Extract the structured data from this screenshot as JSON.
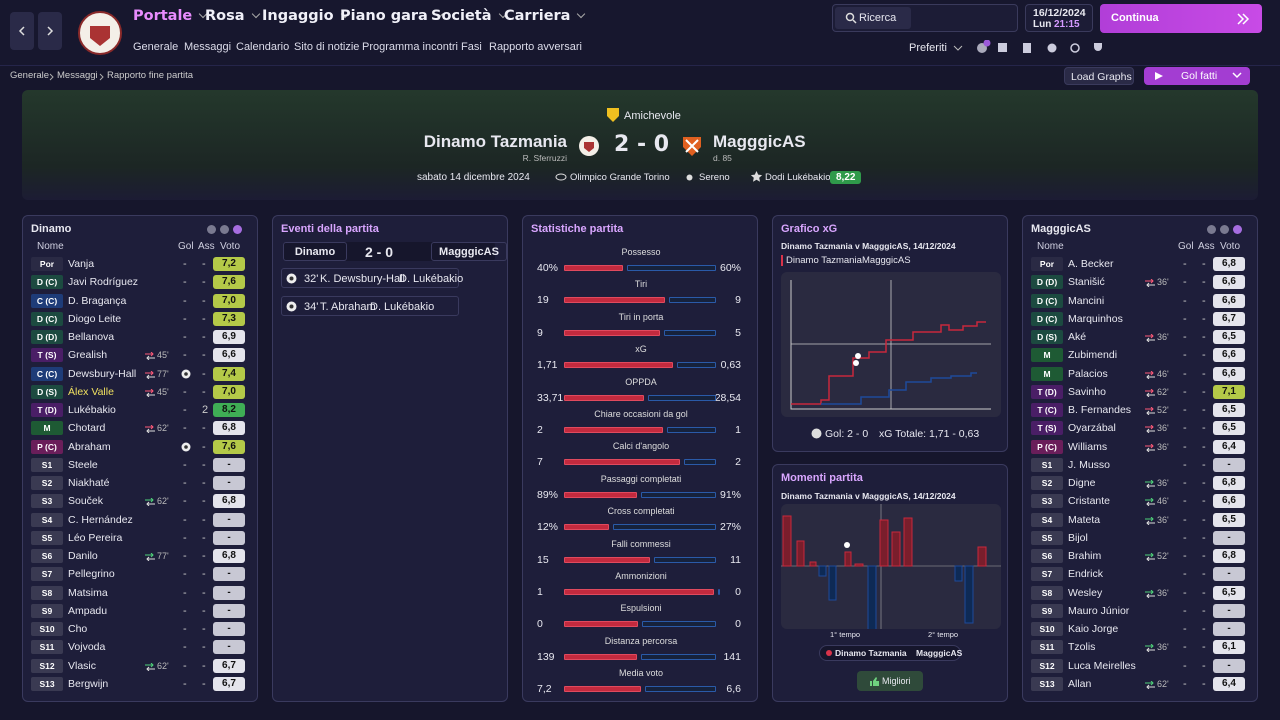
{
  "nav": {
    "menu": [
      "Portale",
      "Rosa",
      "Ingaggio",
      "Piano gara",
      "Società",
      "Carriera"
    ],
    "submenu": [
      "Generale",
      "Messaggi",
      "Calendario",
      "Sito di notizie",
      "Programma incontri",
      "Fasi",
      "Rapporto avversari"
    ],
    "search": "Ricerca",
    "date": "16/12/2024",
    "day": "Lun",
    "time": "21:15",
    "continue": "Continua",
    "favorites": "Preferiti"
  },
  "breadcrumb": [
    "Generale",
    "Messaggi",
    "Rapporto fine partita"
  ],
  "buttons": {
    "load_graphs": "Load Graphs",
    "goals": "Gol fatti"
  },
  "match": {
    "competition": "Amichevole",
    "home": "Dinamo Tazmania",
    "home_manager": "R. Sferruzzi",
    "score": "2 - 0",
    "away": "MagggicAS",
    "away_manager": "d. 85",
    "date": "sabato 14 dicembre 2024",
    "stadium": "Olimpico Grande Torino",
    "weather": "Sereno",
    "player_of_match": "Dodi Lukébakio",
    "player_of_match_rating": "8,22"
  },
  "home_lineup": {
    "title": "Dinamo",
    "headers": [
      "Nome",
      "Gol",
      "Ass",
      "Voto"
    ],
    "players": [
      {
        "pos": "Por",
        "name": "Vanja",
        "gol": "-",
        "ass": "-",
        "rating": "7,2"
      },
      {
        "pos": "D (C)",
        "name": "Javi Rodríguez",
        "gol": "-",
        "ass": "-",
        "rating": "7,6"
      },
      {
        "pos": "C (C)",
        "name": "D. Bragança",
        "gol": "-",
        "ass": "-",
        "rating": "7,0"
      },
      {
        "pos": "D (C)",
        "name": "Diogo Leite",
        "gol": "-",
        "ass": "-",
        "rating": "7,3"
      },
      {
        "pos": "D (D)",
        "name": "Bellanova",
        "gol": "-",
        "ass": "-",
        "rating": "6,9"
      },
      {
        "pos": "T (S)",
        "name": "Grealish",
        "sub": "45'",
        "sub_type": "off",
        "gol": "-",
        "ass": "-",
        "rating": "6,6"
      },
      {
        "pos": "C (C)",
        "name": "Dewsbury-Hall",
        "sub": "77'",
        "sub_type": "off",
        "goal_icon": true,
        "ass": "-",
        "rating": "7,4"
      },
      {
        "pos": "D (S)",
        "name": "Álex Valle",
        "highlight": true,
        "sub": "45'",
        "sub_type": "off",
        "gol": "-",
        "ass": "-",
        "rating": "7,0"
      },
      {
        "pos": "T (D)",
        "name": "Lukébakio",
        "gol": "-",
        "ass": "2",
        "rating": "8,2"
      },
      {
        "pos": "M",
        "name": "Chotard",
        "sub": "62'",
        "sub_type": "off",
        "gol": "-",
        "ass": "-",
        "rating": "6,8"
      },
      {
        "pos": "P (C)",
        "name": "Abraham",
        "goal_icon": true,
        "ass": "-",
        "rating": "7,6"
      },
      {
        "pos": "S1",
        "name": "Steele",
        "gol": "-",
        "ass": "-",
        "rating": "-"
      },
      {
        "pos": "S2",
        "name": "Niakhaté",
        "gol": "-",
        "ass": "-",
        "rating": "-"
      },
      {
        "pos": "S3",
        "name": "Souček",
        "sub": "62'",
        "sub_type": "on",
        "gol": "-",
        "ass": "-",
        "rating": "6,8"
      },
      {
        "pos": "S4",
        "name": "C. Hernández",
        "gol": "-",
        "ass": "-",
        "rating": "-"
      },
      {
        "pos": "S5",
        "name": "Léo Pereira",
        "gol": "-",
        "ass": "-",
        "rating": "-"
      },
      {
        "pos": "S6",
        "name": "Danilo",
        "sub": "77'",
        "sub_type": "on",
        "gol": "-",
        "ass": "-",
        "rating": "6,8"
      },
      {
        "pos": "S7",
        "name": "Pellegrino",
        "gol": "-",
        "ass": "-",
        "rating": "-"
      },
      {
        "pos": "S8",
        "name": "Matsima",
        "gol": "-",
        "ass": "-",
        "rating": "-"
      },
      {
        "pos": "S9",
        "name": "Ampadu",
        "gol": "-",
        "ass": "-",
        "rating": "-"
      },
      {
        "pos": "S10",
        "name": "Cho",
        "gol": "-",
        "ass": "-",
        "rating": "-"
      },
      {
        "pos": "S11",
        "name": "Vojvoda",
        "gol": "-",
        "ass": "-",
        "rating": "-"
      },
      {
        "pos": "S12",
        "name": "Vlasic",
        "sub": "62'",
        "sub_type": "on",
        "gol": "-",
        "ass": "-",
        "rating": "6,7"
      },
      {
        "pos": "S13",
        "name": "Bergwijn",
        "gol": "-",
        "ass": "-",
        "rating": "6,7"
      }
    ]
  },
  "events": {
    "title": "Eventi della partita",
    "home": "Dinamo",
    "score": "2 - 0",
    "away": "MagggicAS",
    "items": [
      {
        "minute": "32'",
        "scorer": "K. Dewsbury-Hall",
        "assist": "D. Lukébakio"
      },
      {
        "minute": "34'",
        "scorer": "T. Abraham",
        "assist": "D. Lukébakio"
      }
    ]
  },
  "stats": {
    "title": "Statistiche partita",
    "rows": [
      {
        "label": "Possesso",
        "home": "40%",
        "away": "60%"
      },
      {
        "label": "Tiri",
        "home": "19",
        "away": "9"
      },
      {
        "label": "Tiri in porta",
        "home": "9",
        "away": "5"
      },
      {
        "label": "xG",
        "home": "1,71",
        "away": "0,63"
      },
      {
        "label": "OPPDA",
        "home": "33,71",
        "away": "28,54"
      },
      {
        "label": "Chiare occasioni da gol",
        "home": "2",
        "away": "1"
      },
      {
        "label": "Calci d'angolo",
        "home": "7",
        "away": "2"
      },
      {
        "label": "Passaggi completati",
        "home": "89%",
        "away": "91%"
      },
      {
        "label": "Cross completati",
        "home": "12%",
        "away": "27%"
      },
      {
        "label": "Falli commessi",
        "home": "15",
        "away": "11"
      },
      {
        "label": "Ammonizioni",
        "home": "1",
        "away": "0"
      },
      {
        "label": "Espulsioni",
        "home": "0",
        "away": "0"
      },
      {
        "label": "Distanza percorsa",
        "home": "139",
        "away": "141"
      },
      {
        "label": "Media voto",
        "home": "7,2",
        "away": "6,6"
      }
    ]
  },
  "xg": {
    "title": "Grafico xG",
    "subtitle": "Dinamo Tazmania v MagggicAS, 14/12/2024",
    "legend": [
      "Dinamo Tazmania",
      "MagggicAS"
    ],
    "goals": "Gol: 2 - 0",
    "total": "xG Totale: 1,71 - 0,63"
  },
  "moments": {
    "title": "Momenti partita",
    "subtitle": "Dinamo Tazmania v MagggicAS, 14/12/2024",
    "halves": [
      "1° tempo",
      "2° tempo"
    ],
    "legend": [
      "Dinamo Tazmania",
      "MagggicAS"
    ],
    "button": "Migliori"
  },
  "away_lineup": {
    "title": "MagggicAS",
    "headers": [
      "Nome",
      "Gol",
      "Ass",
      "Voto"
    ],
    "players": [
      {
        "pos": "Por",
        "name": "A. Becker",
        "gol": "-",
        "ass": "-",
        "rating": "6,8"
      },
      {
        "pos": "D (D)",
        "name": "Stanišić",
        "sub": "36'",
        "sub_type": "off",
        "gol": "-",
        "ass": "-",
        "rating": "6,6"
      },
      {
        "pos": "D (C)",
        "name": "Mancini",
        "gol": "-",
        "ass": "-",
        "rating": "6,6"
      },
      {
        "pos": "D (C)",
        "name": "Marquinhos",
        "gol": "-",
        "ass": "-",
        "rating": "6,7"
      },
      {
        "pos": "D (S)",
        "name": "Aké",
        "sub": "36'",
        "sub_type": "off",
        "gol": "-",
        "ass": "-",
        "rating": "6,5"
      },
      {
        "pos": "M",
        "name": "Zubimendi",
        "gol": "-",
        "ass": "-",
        "rating": "6,6"
      },
      {
        "pos": "M",
        "name": "Palacios",
        "sub": "46'",
        "sub_type": "off",
        "gol": "-",
        "ass": "-",
        "rating": "6,6"
      },
      {
        "pos": "T (D)",
        "name": "Savinho",
        "sub": "62'",
        "sub_type": "off",
        "gol": "-",
        "ass": "-",
        "rating": "7,1"
      },
      {
        "pos": "T (C)",
        "name": "B. Fernandes",
        "sub": "52'",
        "sub_type": "off",
        "gol": "-",
        "ass": "-",
        "rating": "6,5"
      },
      {
        "pos": "T (S)",
        "name": "Oyarzábal",
        "sub": "36'",
        "sub_type": "off",
        "gol": "-",
        "ass": "-",
        "rating": "6,5"
      },
      {
        "pos": "P (C)",
        "name": "Williams",
        "sub": "36'",
        "sub_type": "off",
        "gol": "-",
        "ass": "-",
        "rating": "6,4"
      },
      {
        "pos": "S1",
        "name": "J. Musso",
        "gol": "-",
        "ass": "-",
        "rating": "-"
      },
      {
        "pos": "S2",
        "name": "Digne",
        "sub": "36'",
        "sub_type": "on",
        "gol": "-",
        "ass": "-",
        "rating": "6,8"
      },
      {
        "pos": "S3",
        "name": "Cristante",
        "sub": "46'",
        "sub_type": "on",
        "gol": "-",
        "ass": "-",
        "rating": "6,6"
      },
      {
        "pos": "S4",
        "name": "Mateta",
        "sub": "36'",
        "sub_type": "on",
        "gol": "-",
        "ass": "-",
        "rating": "6,5"
      },
      {
        "pos": "S5",
        "name": "Bijol",
        "gol": "-",
        "ass": "-",
        "rating": "-"
      },
      {
        "pos": "S6",
        "name": "Brahim",
        "sub": "52'",
        "sub_type": "on",
        "gol": "-",
        "ass": "-",
        "rating": "6,8"
      },
      {
        "pos": "S7",
        "name": "Endrick",
        "gol": "-",
        "ass": "-",
        "rating": "-"
      },
      {
        "pos": "S8",
        "name": "Wesley",
        "sub": "36'",
        "sub_type": "on",
        "gol": "-",
        "ass": "-",
        "rating": "6,5"
      },
      {
        "pos": "S9",
        "name": "Mauro Júnior",
        "gol": "-",
        "ass": "-",
        "rating": "-"
      },
      {
        "pos": "S10",
        "name": "Kaio Jorge",
        "gol": "-",
        "ass": "-",
        "rating": "-"
      },
      {
        "pos": "S11",
        "name": "Tzolis",
        "sub": "36'",
        "sub_type": "on",
        "gol": "-",
        "ass": "-",
        "rating": "6,1"
      },
      {
        "pos": "S12",
        "name": "Luca Meirelles",
        "gol": "-",
        "ass": "-",
        "rating": "-"
      },
      {
        "pos": "S13",
        "name": "Allan",
        "sub": "62'",
        "sub_type": "on",
        "gol": "-",
        "ass": "-",
        "rating": "6,4"
      }
    ]
  }
}
